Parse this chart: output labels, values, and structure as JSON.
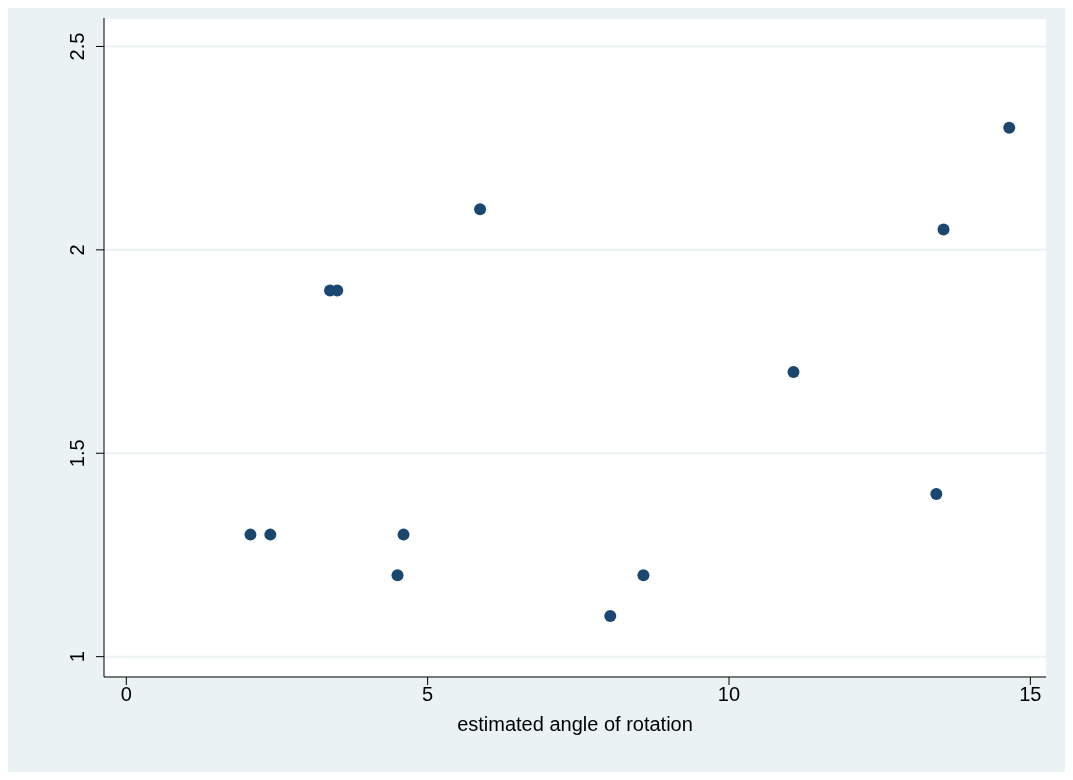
{
  "chart_data": {
    "type": "scatter",
    "xlabel": "estimated angle of rotation",
    "x": [
      2.06,
      2.39,
      3.38,
      3.5,
      4.5,
      4.6,
      5.87,
      8.03,
      8.58,
      11.07,
      13.44,
      13.56,
      14.65
    ],
    "values": [
      1.3,
      1.3,
      1.9,
      1.9,
      1.2,
      1.3,
      2.1,
      1.1,
      1.2,
      1.7,
      1.4,
      2.05,
      2.3
    ],
    "color": "#1a476f",
    "marker": "circle",
    "xlim": [
      -0.37,
      15.26
    ],
    "xticks": [
      0,
      5,
      10,
      15
    ],
    "ylim": [
      0.95,
      2.57
    ],
    "yticks": [
      1,
      1.5,
      2,
      2.5
    ],
    "grid": "y",
    "legend": false
  }
}
